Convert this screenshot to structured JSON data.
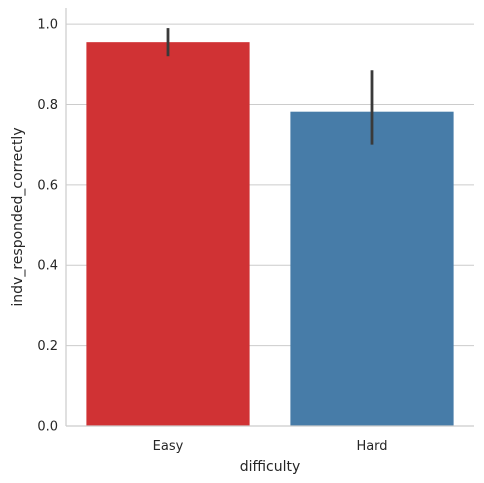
{
  "chart_data": {
    "type": "bar",
    "title": "",
    "xlabel": "difficulty",
    "ylabel": "indv_responded_correctly",
    "categories": [
      "Easy",
      "Hard"
    ],
    "values": [
      0.955,
      0.782
    ],
    "error_low": [
      0.92,
      0.7
    ],
    "error_high": [
      0.99,
      0.885
    ],
    "colors": [
      "#d03234",
      "#477ca8"
    ],
    "ylim": [
      0,
      1.04
    ],
    "yticks": [
      0.0,
      0.2,
      0.4,
      0.6,
      0.8,
      1.0
    ],
    "ytick_labels": [
      "0.0",
      "0.2",
      "0.4",
      "0.6",
      "0.8",
      "1.0"
    ],
    "grid": "horizontal",
    "legend": "none"
  }
}
